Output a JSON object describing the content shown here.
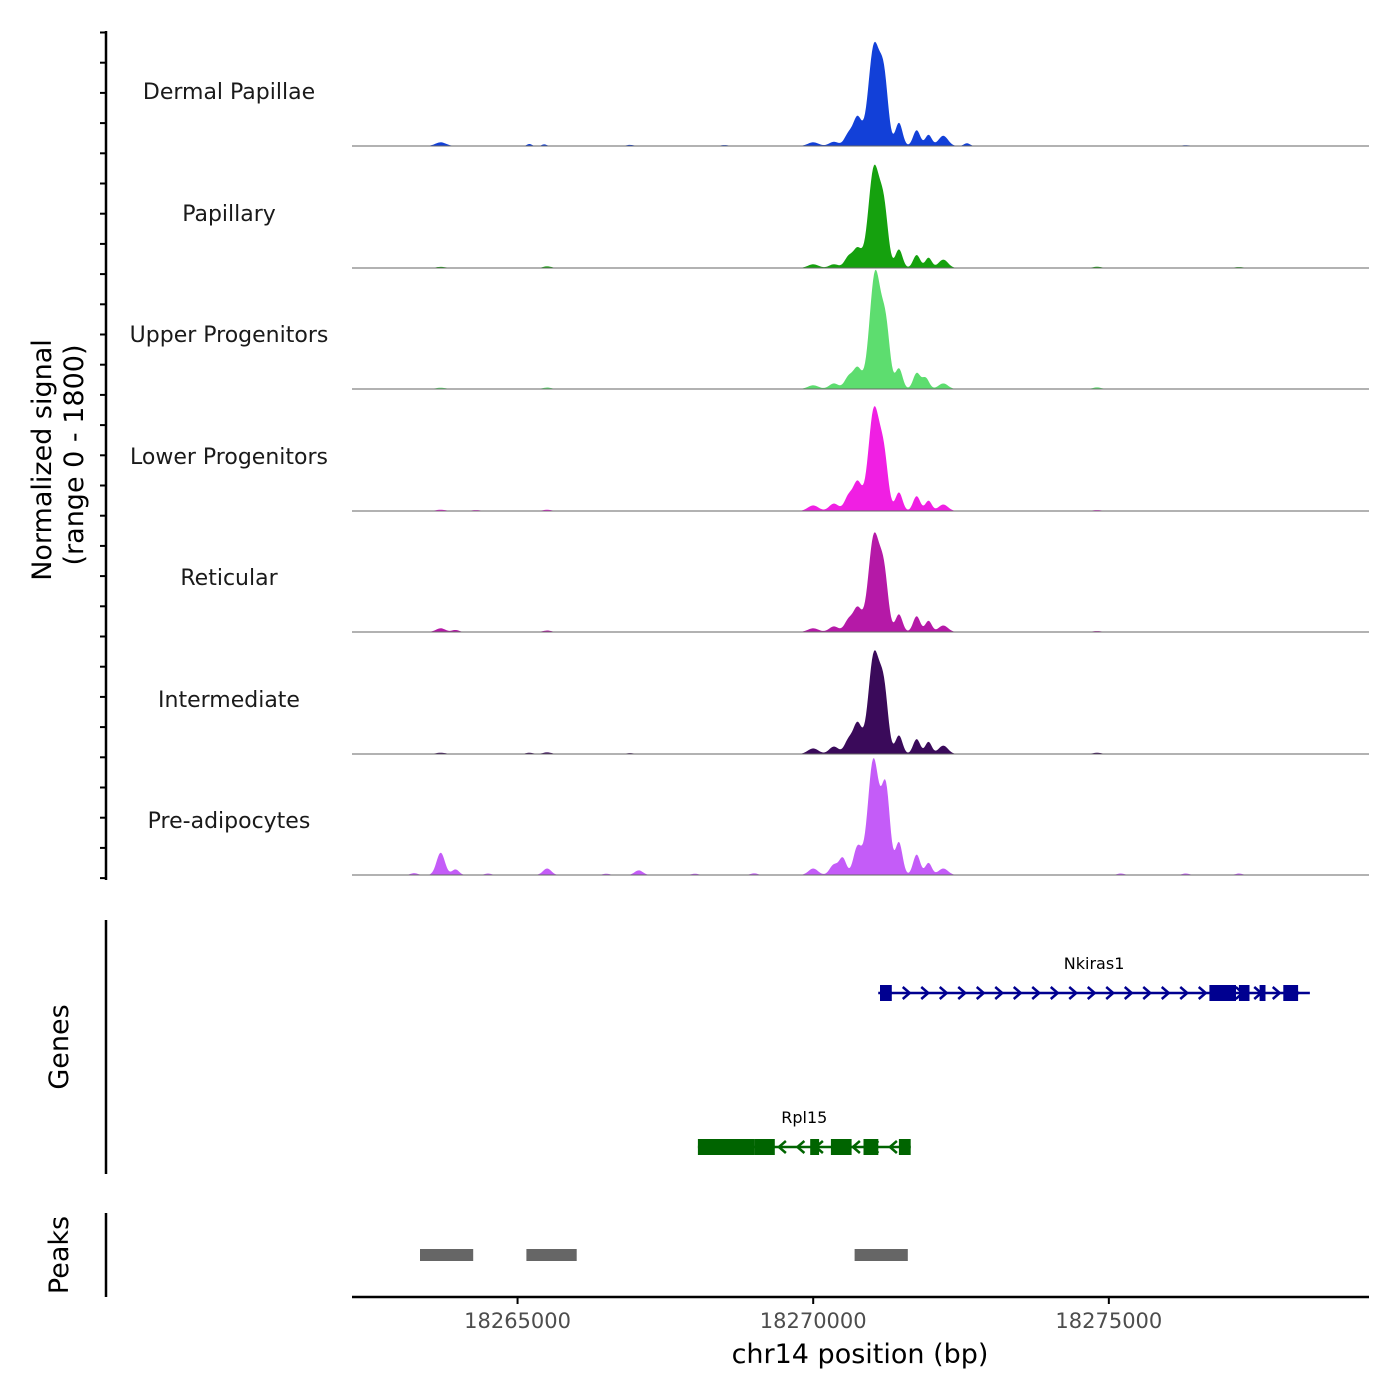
{
  "chart_data": {
    "type": "area",
    "title": "",
    "ylabel_line1": "Normalized signal",
    "ylabel_line2": "(range 0 - 1800)",
    "ylim": [
      0,
      1800
    ],
    "xlabel": "chr14 position (bp)",
    "xlim": [
      18262200,
      18279400
    ],
    "xticks": [
      18265000,
      18270000,
      18275000
    ],
    "xtick_labels": [
      "18265000",
      "18270000",
      "18275000"
    ],
    "baseline_color": "#666666",
    "series": [
      {
        "name": "Dermal Papillae",
        "color": "#1240d8",
        "peaks": [
          [
            18263700,
            40,
            90
          ],
          [
            18265200,
            22,
            40
          ],
          [
            18265450,
            18,
            40
          ],
          [
            18270000,
            40,
            90
          ],
          [
            18270350,
            45,
            80
          ],
          [
            18270600,
            130,
            70
          ],
          [
            18270750,
            300,
            70
          ],
          [
            18271030,
            1080,
            95
          ],
          [
            18271200,
            650,
            70
          ],
          [
            18271450,
            250,
            60
          ],
          [
            18271750,
            170,
            60
          ],
          [
            18271950,
            120,
            55
          ],
          [
            18272200,
            110,
            80
          ],
          [
            18272600,
            30,
            50
          ],
          [
            18266900,
            12,
            60
          ],
          [
            18268500,
            10,
            60
          ],
          [
            18276300,
            8,
            80
          ]
        ]
      },
      {
        "name": "Papillary",
        "color": "#15a10e",
        "peaks": [
          [
            18263700,
            12,
            80
          ],
          [
            18265500,
            18,
            70
          ],
          [
            18270000,
            40,
            90
          ],
          [
            18270350,
            40,
            80
          ],
          [
            18270600,
            120,
            70
          ],
          [
            18270750,
            200,
            70
          ],
          [
            18271030,
            1080,
            95
          ],
          [
            18271200,
            550,
            70
          ],
          [
            18271450,
            200,
            60
          ],
          [
            18271750,
            140,
            60
          ],
          [
            18271950,
            110,
            55
          ],
          [
            18272200,
            90,
            80
          ],
          [
            18274800,
            14,
            70
          ],
          [
            18277200,
            10,
            70
          ]
        ]
      },
      {
        "name": "Upper Progenitors",
        "color": "#5ddd6f",
        "peaks": [
          [
            18263700,
            14,
            80
          ],
          [
            18265500,
            16,
            70
          ],
          [
            18270000,
            40,
            90
          ],
          [
            18270350,
            60,
            80
          ],
          [
            18270600,
            130,
            70
          ],
          [
            18270750,
            220,
            70
          ],
          [
            18271050,
            1260,
            95
          ],
          [
            18271230,
            600,
            70
          ],
          [
            18271450,
            220,
            60
          ],
          [
            18271750,
            170,
            60
          ],
          [
            18271900,
            120,
            60
          ],
          [
            18272200,
            60,
            80
          ],
          [
            18274800,
            18,
            70
          ]
        ]
      },
      {
        "name": "Lower Progenitors",
        "color": "#f01fe3",
        "peaks": [
          [
            18263700,
            14,
            80
          ],
          [
            18264300,
            10,
            80
          ],
          [
            18265500,
            14,
            70
          ],
          [
            18270000,
            60,
            90
          ],
          [
            18270350,
            80,
            80
          ],
          [
            18270600,
            160,
            70
          ],
          [
            18270750,
            300,
            70
          ],
          [
            18271030,
            1100,
            95
          ],
          [
            18271200,
            500,
            70
          ],
          [
            18271450,
            200,
            60
          ],
          [
            18271750,
            160,
            60
          ],
          [
            18271950,
            110,
            55
          ],
          [
            18272200,
            70,
            80
          ],
          [
            18274800,
            10,
            70
          ]
        ]
      },
      {
        "name": "Reticular",
        "color": "#b519a7",
        "peaks": [
          [
            18263700,
            40,
            80
          ],
          [
            18263950,
            22,
            60
          ],
          [
            18265500,
            16,
            70
          ],
          [
            18270000,
            40,
            90
          ],
          [
            18270350,
            60,
            80
          ],
          [
            18270600,
            130,
            70
          ],
          [
            18270750,
            250,
            70
          ],
          [
            18271030,
            1040,
            95
          ],
          [
            18271200,
            550,
            70
          ],
          [
            18271450,
            190,
            60
          ],
          [
            18271750,
            170,
            60
          ],
          [
            18271950,
            120,
            55
          ],
          [
            18272200,
            70,
            80
          ],
          [
            18274800,
            10,
            70
          ]
        ]
      },
      {
        "name": "Intermediate",
        "color": "#3a0a5a",
        "peaks": [
          [
            18263700,
            14,
            80
          ],
          [
            18265200,
            14,
            60
          ],
          [
            18265500,
            18,
            70
          ],
          [
            18270000,
            60,
            90
          ],
          [
            18270350,
            80,
            80
          ],
          [
            18270600,
            150,
            70
          ],
          [
            18270750,
            320,
            70
          ],
          [
            18271030,
            1080,
            95
          ],
          [
            18271200,
            600,
            70
          ],
          [
            18271450,
            200,
            60
          ],
          [
            18271750,
            160,
            60
          ],
          [
            18271950,
            130,
            55
          ],
          [
            18272200,
            90,
            80
          ],
          [
            18274800,
            14,
            70
          ],
          [
            18266900,
            10,
            60
          ]
        ]
      },
      {
        "name": "Pre-adipocytes",
        "color": "#c45cf8",
        "peaks": [
          [
            18263250,
            20,
            60
          ],
          [
            18263700,
            240,
            70
          ],
          [
            18263950,
            60,
            60
          ],
          [
            18264500,
            16,
            60
          ],
          [
            18265500,
            70,
            70
          ],
          [
            18266500,
            14,
            60
          ],
          [
            18267050,
            50,
            70
          ],
          [
            18268000,
            14,
            60
          ],
          [
            18269000,
            18,
            60
          ],
          [
            18270000,
            70,
            80
          ],
          [
            18270350,
            110,
            70
          ],
          [
            18270500,
            180,
            60
          ],
          [
            18270750,
            300,
            70
          ],
          [
            18271020,
            1250,
            95
          ],
          [
            18271230,
            900,
            70
          ],
          [
            18271450,
            350,
            60
          ],
          [
            18271750,
            220,
            60
          ],
          [
            18271950,
            130,
            55
          ],
          [
            18272200,
            70,
            80
          ],
          [
            18275200,
            16,
            60
          ],
          [
            18276300,
            16,
            60
          ],
          [
            18277200,
            16,
            60
          ]
        ]
      }
    ],
    "genes_track_label": "Genes",
    "genes": [
      {
        "name": "Nkiras1",
        "strand": "+",
        "color": "#000090",
        "start": 18271100,
        "end": 18278400,
        "exons": [
          [
            18271130,
            18271330
          ],
          [
            18276700,
            18277150
          ],
          [
            18277200,
            18277380
          ],
          [
            18277550,
            18277650
          ],
          [
            18277950,
            18278200
          ]
        ]
      },
      {
        "name": "Rpl15",
        "strand": "-",
        "color": "#006400",
        "start": 18268050,
        "end": 18271650,
        "exons": [
          [
            18268050,
            18269000
          ],
          [
            18269000,
            18269350
          ],
          [
            18269950,
            18270100
          ],
          [
            18270300,
            18270650
          ],
          [
            18270850,
            18271100
          ],
          [
            18271450,
            18271650
          ]
        ]
      }
    ],
    "peaks_track_label": "Peaks",
    "peak_color": "#666666",
    "peak_regions": [
      [
        18263350,
        18264250
      ],
      [
        18265150,
        18266000
      ],
      [
        18270700,
        18271600
      ]
    ]
  }
}
